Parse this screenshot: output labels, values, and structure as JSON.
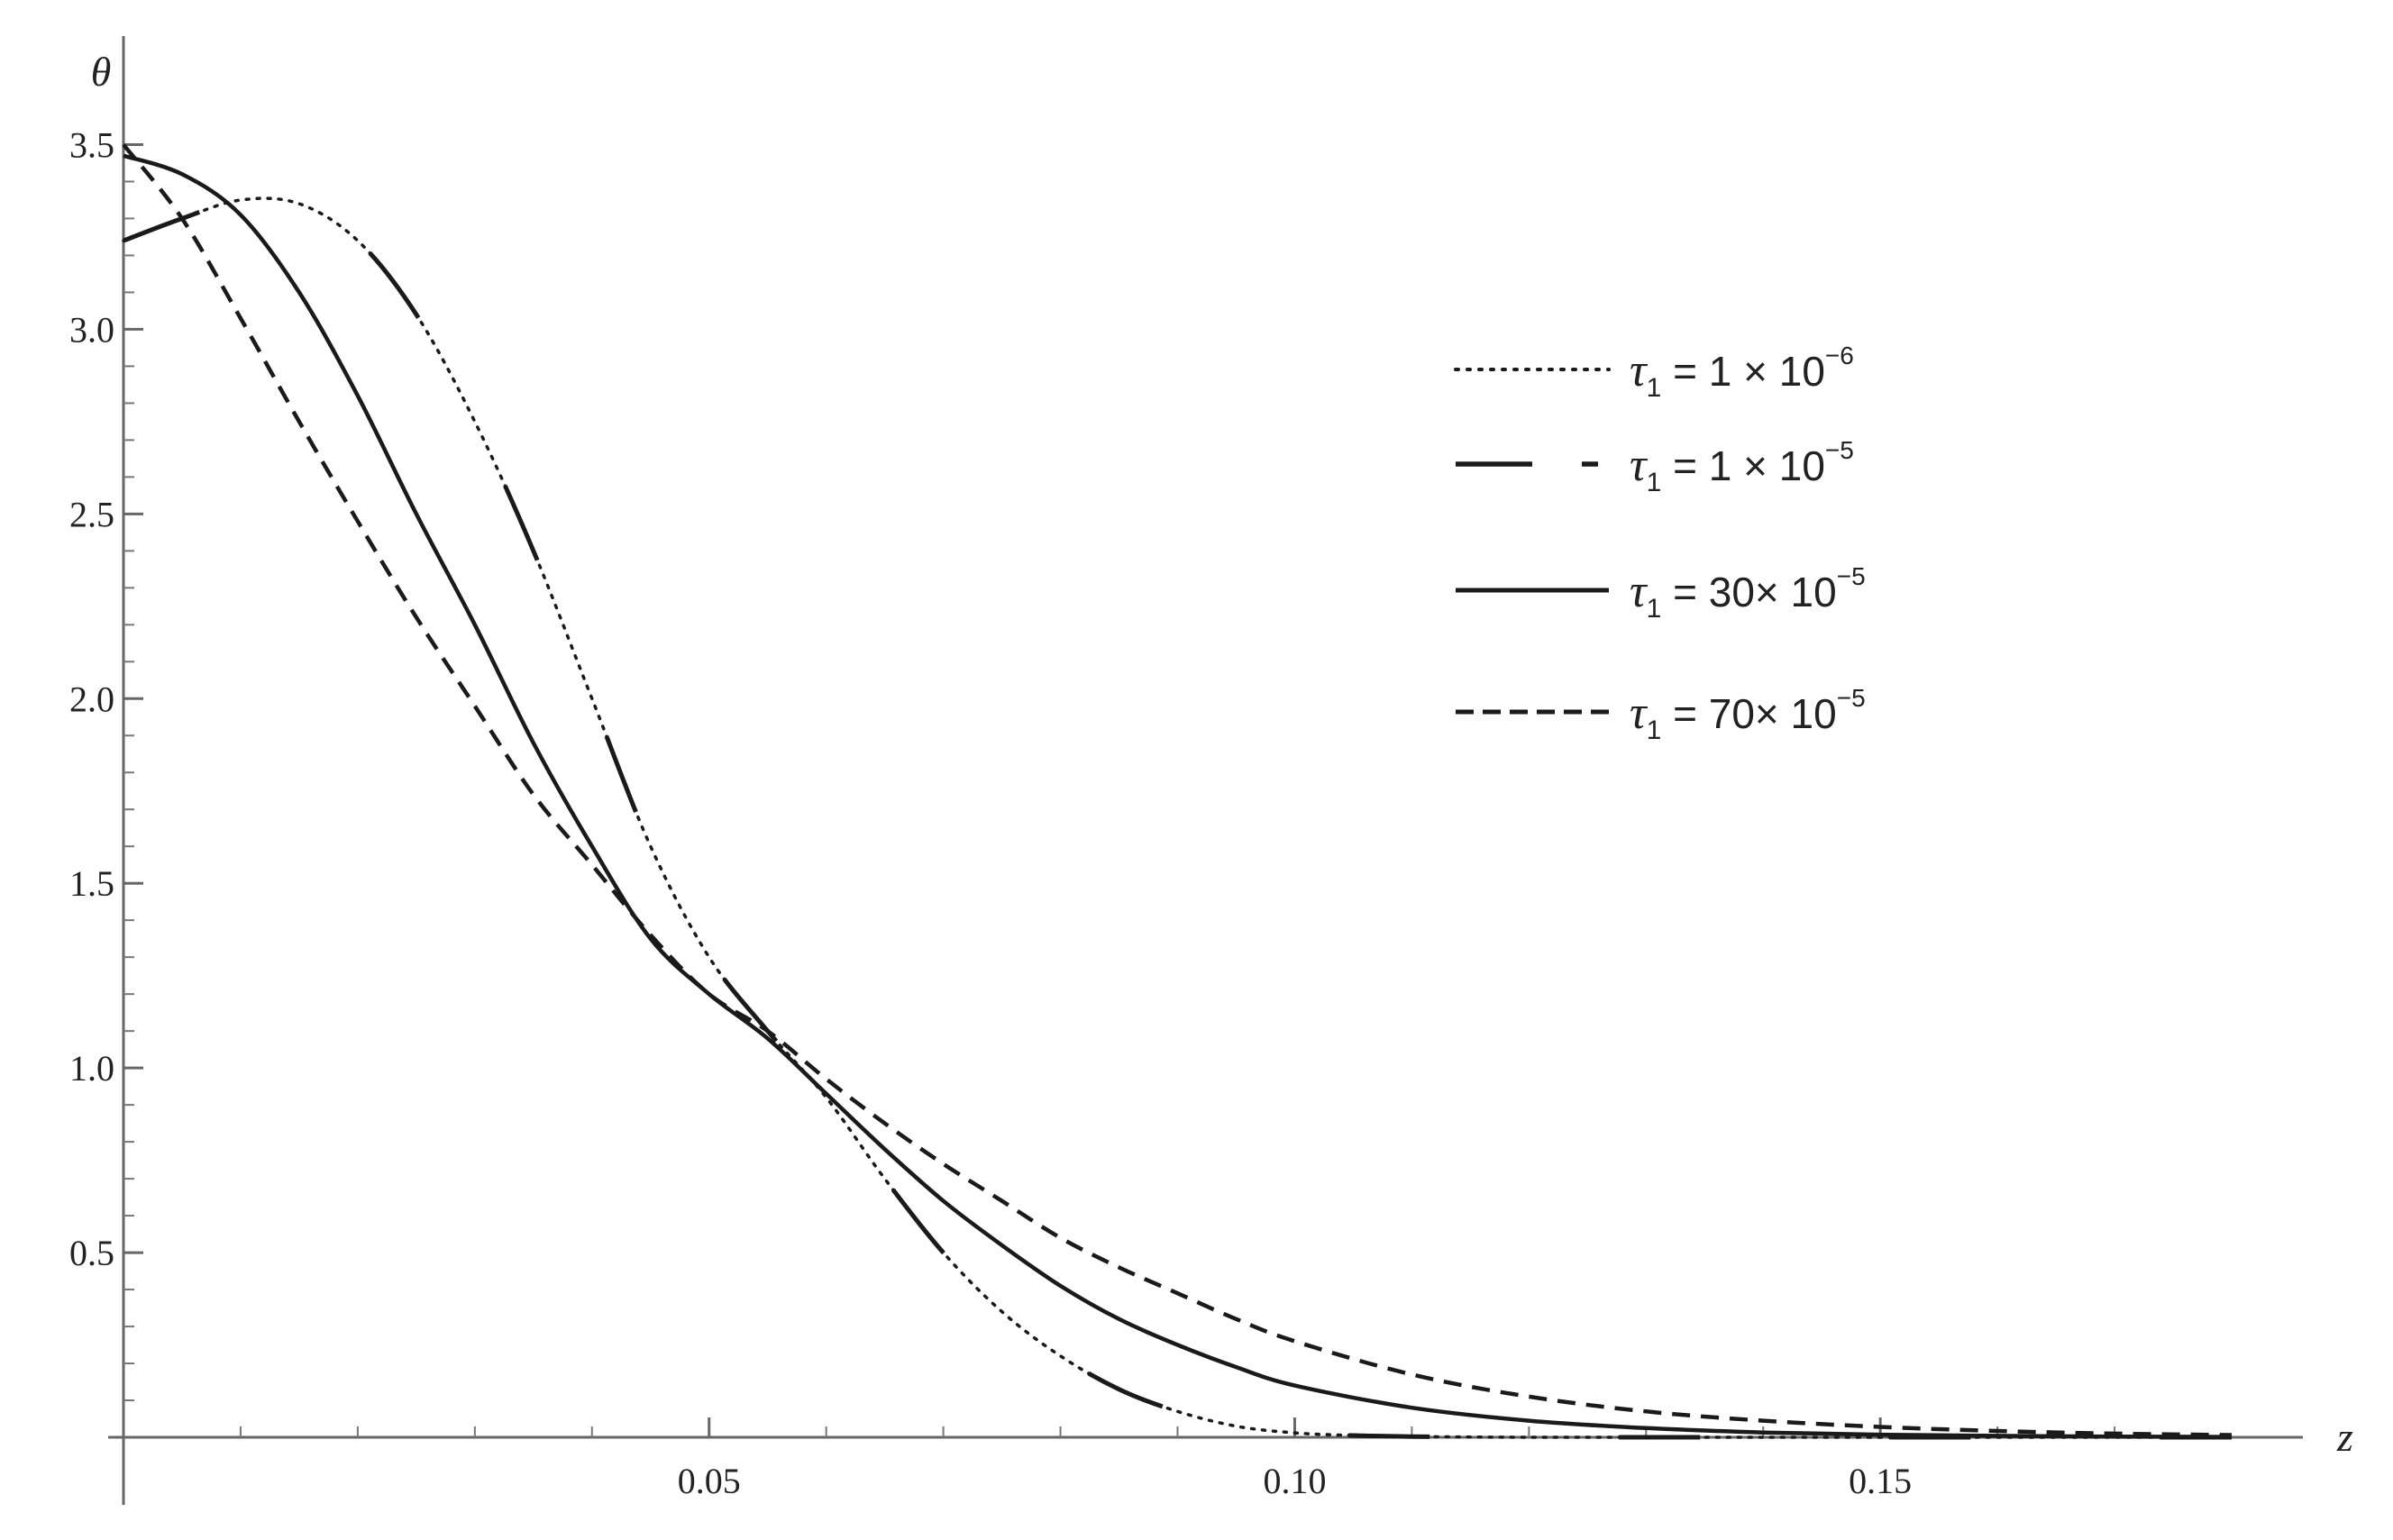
{
  "chart_data": {
    "type": "line",
    "xlabel": "z",
    "ylabel": "θ",
    "xlim": [
      0,
      0.183
    ],
    "ylim": [
      0,
      3.55
    ],
    "x_ticks": [
      {
        "value": 0.05,
        "label": "0.05"
      },
      {
        "value": 0.1,
        "label": "0.10"
      },
      {
        "value": 0.15,
        "label": "0.15"
      }
    ],
    "x_minor_ticks": [
      0.01,
      0.02,
      0.03,
      0.04,
      0.06,
      0.07,
      0.08,
      0.09,
      0.11,
      0.12,
      0.13,
      0.14,
      0.16,
      0.17
    ],
    "y_ticks": [
      {
        "value": 0.5,
        "label": "0.5"
      },
      {
        "value": 1.0,
        "label": "1.0"
      },
      {
        "value": 1.5,
        "label": "1.5"
      },
      {
        "value": 2.0,
        "label": "2.0"
      },
      {
        "value": 2.5,
        "label": "2.5"
      },
      {
        "value": 3.0,
        "label": "3.0"
      },
      {
        "value": 3.5,
        "label": "3.5"
      }
    ],
    "y_minor_ticks": [
      0.1,
      0.2,
      0.3,
      0.4,
      0.6,
      0.7,
      0.8,
      0.9,
      1.1,
      1.2,
      1.3,
      1.4,
      1.6,
      1.7,
      1.8,
      1.9,
      2.1,
      2.2,
      2.3,
      2.4,
      2.6,
      2.7,
      2.8,
      2.9,
      3.1,
      3.2,
      3.3,
      3.4
    ],
    "legend_position": "top-right",
    "series": [
      {
        "label_prefix": "τ",
        "label_sub": "1",
        "label_mid": " =  1 × 10",
        "label_exp": "−6",
        "style": "dotted",
        "x": [
          0.0,
          0.005,
          0.01,
          0.015,
          0.02,
          0.025,
          0.03,
          0.035,
          0.04,
          0.045,
          0.05,
          0.055,
          0.06,
          0.065,
          0.07,
          0.075,
          0.08,
          0.085,
          0.09,
          0.095,
          0.1,
          0.105,
          0.11,
          0.12,
          0.13,
          0.14,
          0.15,
          0.16,
          0.17,
          0.18
        ],
        "y": [
          3.24,
          3.3,
          3.35,
          3.34,
          3.24,
          3.04,
          2.75,
          2.4,
          2.0,
          1.6,
          1.3,
          1.1,
          0.92,
          0.7,
          0.5,
          0.34,
          0.22,
          0.13,
          0.07,
          0.03,
          0.012,
          0.005,
          0.002,
          0.0,
          0.0,
          0.0,
          0.0,
          0.0,
          0.0,
          0.0
        ]
      },
      {
        "label_prefix": "τ",
        "label_sub": "1",
        "label_mid": " =  1 × 10",
        "label_exp": "−5",
        "style": "long-dash",
        "x": [
          0.0,
          0.005,
          0.01,
          0.015,
          0.02,
          0.025,
          0.03,
          0.035,
          0.04,
          0.045,
          0.05,
          0.055,
          0.06,
          0.065,
          0.07,
          0.075,
          0.08,
          0.085,
          0.09,
          0.095,
          0.1,
          0.105,
          0.11,
          0.12,
          0.13,
          0.14,
          0.15,
          0.16,
          0.17,
          0.18
        ],
        "y": [
          3.24,
          3.3,
          3.35,
          3.34,
          3.24,
          3.04,
          2.75,
          2.4,
          2.0,
          1.6,
          1.3,
          1.1,
          0.92,
          0.7,
          0.5,
          0.34,
          0.22,
          0.13,
          0.07,
          0.03,
          0.012,
          0.005,
          0.002,
          0.0,
          0.0,
          0.0,
          0.0,
          0.0,
          0.0,
          0.0
        ]
      },
      {
        "label_prefix": "τ",
        "label_sub": "1",
        "label_mid": " = 30× 10",
        "label_exp": "−5",
        "style": "solid",
        "x": [
          0.0,
          0.005,
          0.01,
          0.015,
          0.02,
          0.025,
          0.03,
          0.035,
          0.04,
          0.045,
          0.05,
          0.055,
          0.06,
          0.065,
          0.07,
          0.075,
          0.08,
          0.085,
          0.09,
          0.095,
          0.1,
          0.11,
          0.12,
          0.13,
          0.14,
          0.15,
          0.16,
          0.17,
          0.18
        ],
        "y": [
          3.47,
          3.42,
          3.31,
          3.1,
          2.82,
          2.5,
          2.2,
          1.88,
          1.6,
          1.35,
          1.2,
          1.08,
          0.93,
          0.78,
          0.64,
          0.52,
          0.41,
          0.32,
          0.25,
          0.19,
          0.14,
          0.08,
          0.045,
          0.025,
          0.013,
          0.007,
          0.004,
          0.002,
          0.001
        ]
      },
      {
        "label_prefix": "τ",
        "label_sub": "1",
        "label_mid": " = 70× 10",
        "label_exp": "−5",
        "style": "short-dash",
        "x": [
          0.0,
          0.005,
          0.01,
          0.015,
          0.02,
          0.025,
          0.03,
          0.035,
          0.04,
          0.045,
          0.05,
          0.055,
          0.06,
          0.065,
          0.07,
          0.075,
          0.08,
          0.085,
          0.09,
          0.095,
          0.1,
          0.11,
          0.12,
          0.13,
          0.14,
          0.15,
          0.16,
          0.17,
          0.18
        ],
        "y": [
          3.5,
          3.3,
          3.03,
          2.75,
          2.48,
          2.22,
          1.98,
          1.74,
          1.55,
          1.36,
          1.2,
          1.1,
          0.97,
          0.85,
          0.74,
          0.64,
          0.54,
          0.46,
          0.39,
          0.32,
          0.26,
          0.17,
          0.11,
          0.07,
          0.045,
          0.028,
          0.017,
          0.01,
          0.006
        ]
      }
    ]
  }
}
